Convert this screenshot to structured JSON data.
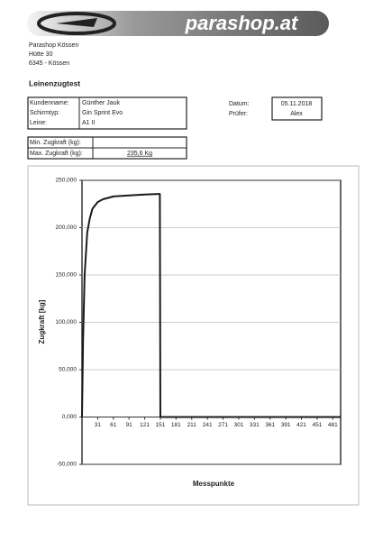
{
  "header": {
    "logo": "parashop.at",
    "address": [
      "Parashop Kössen",
      "Hütte 30",
      "6345 - Kössen"
    ]
  },
  "title": "Leinenzugtest",
  "fields": [
    {
      "label": "Kundenname:",
      "value": "Günther Jauk"
    },
    {
      "label": "Schirmtyp:",
      "value": "Gin Sprint Evo"
    },
    {
      "label": "Leine:",
      "value": "A1 II"
    }
  ],
  "datum": {
    "label": "Datum:",
    "value": "05.11.2018"
  },
  "pruefer": {
    "label": "Prüfer:",
    "value": "Alex"
  },
  "forces": [
    {
      "label": "Min. Zugkraft (kg):"
    },
    {
      "label": "Max. Zugkraft (kg):",
      "value": "235,6 Kg"
    }
  ],
  "chart": {
    "type": "line",
    "y_label": "Zugkraft [kg]",
    "x_label": "Messpunkte",
    "color": "#1a1a1a",
    "grid": true,
    "x": [
      1,
      3,
      6,
      11,
      16,
      21,
      31,
      41,
      61,
      91,
      121,
      148,
      150,
      151,
      496
    ],
    "values": [
      0,
      80,
      150,
      195,
      210,
      220,
      227,
      230,
      233,
      234,
      235,
      235.6,
      235.6,
      0,
      0
    ],
    "xlim": [
      1,
      496
    ],
    "ylim": [
      -50,
      250
    ],
    "yticks": [
      {
        "value": -50,
        "label": "-50,000"
      },
      {
        "value": 0,
        "label": "0,000"
      },
      {
        "value": 50,
        "label": "50,000"
      },
      {
        "value": 100,
        "label": "100,000"
      },
      {
        "value": 150,
        "label": "150,000"
      },
      {
        "value": 200,
        "label": "200,000"
      },
      {
        "value": 250,
        "label": "250,000"
      }
    ],
    "xticks": [
      31,
      61,
      91,
      121,
      151,
      181,
      211,
      241,
      271,
      301,
      331,
      361,
      391,
      421,
      451,
      481
    ]
  }
}
